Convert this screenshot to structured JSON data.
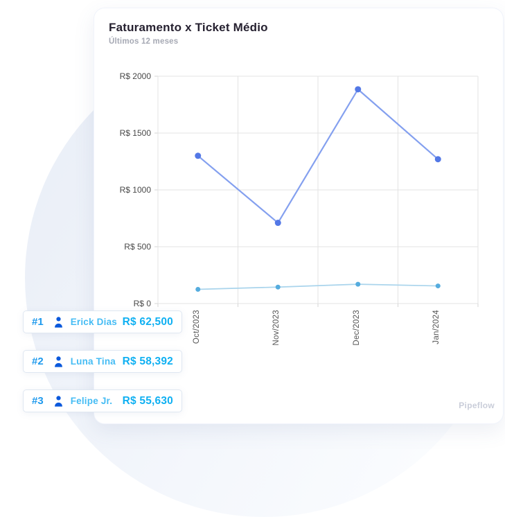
{
  "card": {
    "title": "Faturamento x Ticket Médio",
    "subtitle": "Últimos 12 meses",
    "watermark": "Pipeflow"
  },
  "chart_data": {
    "type": "line",
    "title": "Faturamento x Ticket Médio",
    "subtitle": "Últimos 12 meses",
    "categories": [
      "Oct/2023",
      "Nov/2023",
      "Dec/2023",
      "Jan/2024"
    ],
    "series": [
      {
        "name": "Faturamento",
        "values": [
          1300,
          710,
          1885,
          1270
        ],
        "line_color": "#84a0ef",
        "point_color": "#5378e6"
      },
      {
        "name": "Ticket Médio",
        "values": [
          125,
          145,
          170,
          155
        ],
        "line_color": "#a9d4ec",
        "point_color": "#55acde"
      }
    ],
    "ylim": [
      0,
      2000
    ],
    "yticks": [
      {
        "value": 0,
        "label": "R$ 0"
      },
      {
        "value": 500,
        "label": "R$ 500"
      },
      {
        "value": 1000,
        "label": "R$ 1000"
      },
      {
        "value": 1500,
        "label": "R$ 1500"
      },
      {
        "value": 2000,
        "label": "R$ 2000"
      }
    ],
    "grid": true,
    "grid_color": "#e3e3e3",
    "tick_color": "#d6d6d6",
    "legend": "none",
    "x_label_rotation": -90
  },
  "leaderboard": [
    {
      "rank": "#1",
      "name": "Erick Dias",
      "amount": "R$ 62,500"
    },
    {
      "rank": "#2",
      "name": "Luna Tina",
      "amount": "R$ 58,392"
    },
    {
      "rank": "#3",
      "name": "Felipe Jr.",
      "amount": "R$ 55,630"
    }
  ],
  "colors": {
    "rank_blue": "#1f9aed",
    "name_blue": "#45bcf4",
    "amount_cyan": "#0fb0f2",
    "icon_blue": "#0b59dc",
    "title_dark": "#262130",
    "subtitle_gray": "#a6a9b4",
    "watermark_gray": "#c9cdd9"
  }
}
